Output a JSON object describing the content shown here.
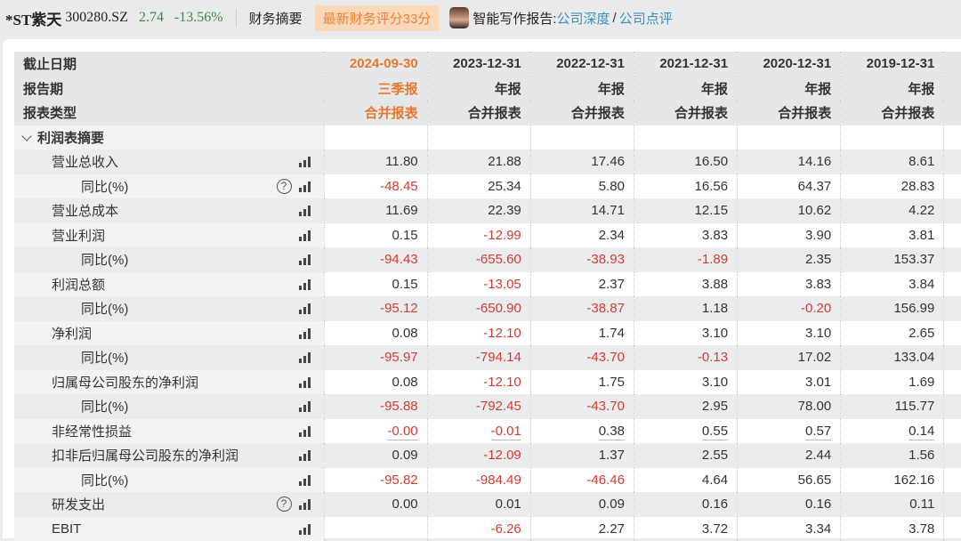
{
  "header": {
    "name": "*ST紫天",
    "code": "300280.SZ",
    "price": "2.74",
    "change": "-13.56%",
    "summary": "财务摘要",
    "score_badge": "最新财务评分33分",
    "ai_label": "智能写作报告:",
    "link_deep": "公司深度",
    "link_sep": "/",
    "link_review": "公司点评"
  },
  "colors": {
    "negative": "#d13b31",
    "positive_price": "#3d8a3a",
    "current_period": "#e8782f",
    "link": "#3a8fbd"
  },
  "table": {
    "header_rows": [
      {
        "label": "截止日期",
        "values": [
          "2024-09-30",
          "2023-12-31",
          "2022-12-31",
          "2021-12-31",
          "2020-12-31",
          "2019-12-31"
        ]
      },
      {
        "label": "报告期",
        "values": [
          "三季报",
          "年报",
          "年报",
          "年报",
          "年报",
          "年报"
        ]
      },
      {
        "label": "报表类型",
        "values": [
          "合并报表",
          "合并报表",
          "合并报表",
          "合并报表",
          "合并报表",
          "合并报表"
        ]
      }
    ],
    "section": "利润表摘要",
    "rows": [
      {
        "label": "营业总收入",
        "indent": 1,
        "values": [
          "11.80",
          "21.88",
          "17.46",
          "16.50",
          "14.16",
          "8.61"
        ]
      },
      {
        "label": "同比(%)",
        "indent": 2,
        "help": true,
        "values": [
          "-48.45",
          "25.34",
          "5.80",
          "16.56",
          "64.37",
          "28.83"
        ]
      },
      {
        "label": "营业总成本",
        "indent": 1,
        "values": [
          "11.69",
          "22.39",
          "14.71",
          "12.15",
          "10.62",
          "4.22"
        ]
      },
      {
        "label": "营业利润",
        "indent": 1,
        "values": [
          "0.15",
          "-12.99",
          "2.34",
          "3.83",
          "3.90",
          "3.81"
        ]
      },
      {
        "label": "同比(%)",
        "indent": 2,
        "values": [
          "-94.43",
          "-655.60",
          "-38.93",
          "-1.89",
          "2.35",
          "153.37"
        ]
      },
      {
        "label": "利润总额",
        "indent": 1,
        "values": [
          "0.15",
          "-13.05",
          "2.37",
          "3.88",
          "3.83",
          "3.84"
        ]
      },
      {
        "label": "同比(%)",
        "indent": 2,
        "values": [
          "-95.12",
          "-650.90",
          "-38.87",
          "1.18",
          "-0.20",
          "156.99"
        ]
      },
      {
        "label": "净利润",
        "indent": 1,
        "values": [
          "0.08",
          "-12.10",
          "1.74",
          "3.10",
          "3.10",
          "2.65"
        ]
      },
      {
        "label": "同比(%)",
        "indent": 2,
        "values": [
          "-95.97",
          "-794.14",
          "-43.70",
          "-0.13",
          "17.02",
          "133.04"
        ]
      },
      {
        "label": "归属母公司股东的净利润",
        "indent": 1,
        "values": [
          "0.08",
          "-12.10",
          "1.75",
          "3.10",
          "3.01",
          "1.69"
        ]
      },
      {
        "label": "同比(%)",
        "indent": 2,
        "values": [
          "-95.88",
          "-792.45",
          "-43.70",
          "2.95",
          "78.00",
          "115.77"
        ]
      },
      {
        "label": "非经常性损益",
        "indent": 1,
        "underline": true,
        "values": [
          "-0.00",
          "-0.01",
          "0.38",
          "0.55",
          "0.57",
          "0.14"
        ]
      },
      {
        "label": "扣非后归属母公司股东的净利润",
        "indent": 1,
        "values": [
          "0.09",
          "-12.09",
          "1.37",
          "2.55",
          "2.44",
          "1.56"
        ]
      },
      {
        "label": "同比(%)",
        "indent": 2,
        "values": [
          "-95.82",
          "-984.49",
          "-46.46",
          "4.64",
          "56.65",
          "162.16"
        ]
      },
      {
        "label": "研发支出",
        "indent": 1,
        "help": true,
        "values": [
          "0.00",
          "0.01",
          "0.09",
          "0.16",
          "0.16",
          "0.11"
        ]
      },
      {
        "label": "EBIT",
        "indent": 1,
        "values": [
          "",
          "-6.26",
          "2.27",
          "3.72",
          "3.34",
          "3.78"
        ]
      }
    ]
  }
}
